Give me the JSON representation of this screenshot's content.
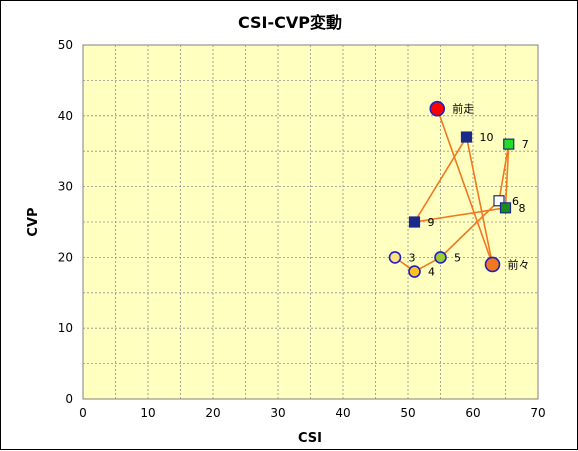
{
  "chart_data": {
    "type": "scatter",
    "title": "CSI-CVP変動",
    "xlabel": "CSI",
    "ylabel": "CVP",
    "xlim": [
      0,
      70
    ],
    "ylim": [
      0,
      50
    ],
    "x_ticks": [
      0,
      10,
      20,
      30,
      40,
      50,
      60,
      70
    ],
    "y_ticks": [
      0,
      10,
      20,
      30,
      40,
      50
    ],
    "x_grid_step": 5,
    "y_grid_step": 5,
    "grid": true,
    "plot_background": "#FFFFC0",
    "line_color": "#F07820",
    "path_order": [
      "3",
      "4",
      "5",
      "6",
      "7",
      "8",
      "9",
      "10",
      "前々",
      "前走"
    ],
    "points": [
      {
        "label": "前走",
        "x": 54.5,
        "y": 41,
        "marker": "circle-large",
        "fill": "#FF0000",
        "stroke": "#2020C0"
      },
      {
        "label": "10",
        "x": 59,
        "y": 37,
        "marker": "square",
        "fill": "#1A2A8A",
        "stroke": "#1A2A8A"
      },
      {
        "label": "7",
        "x": 65.5,
        "y": 36,
        "marker": "square",
        "fill": "#22DD22",
        "stroke": "#1A2A8A"
      },
      {
        "label": "6",
        "x": 64,
        "y": 28,
        "marker": "square",
        "fill": "#FFFFFF",
        "stroke": "#1A2A8A"
      },
      {
        "label": "8",
        "x": 65,
        "y": 27,
        "marker": "square",
        "fill": "#1A8A1A",
        "stroke": "#1A2A8A"
      },
      {
        "label": "9",
        "x": 51,
        "y": 25,
        "marker": "square",
        "fill": "#1A2A8A",
        "stroke": "#1A2A8A"
      },
      {
        "label": "3",
        "x": 48,
        "y": 20,
        "marker": "circle",
        "fill": "#FFE080",
        "stroke": "#2020C0"
      },
      {
        "label": "5",
        "x": 55,
        "y": 20,
        "marker": "circle",
        "fill": "#9ACD32",
        "stroke": "#2020C0"
      },
      {
        "label": "前々",
        "x": 63,
        "y": 19,
        "marker": "circle-large",
        "fill": "#F07820",
        "stroke": "#2020C0"
      },
      {
        "label": "4",
        "x": 51,
        "y": 18,
        "marker": "circle",
        "fill": "#FFC020",
        "stroke": "#2020C0"
      }
    ]
  }
}
